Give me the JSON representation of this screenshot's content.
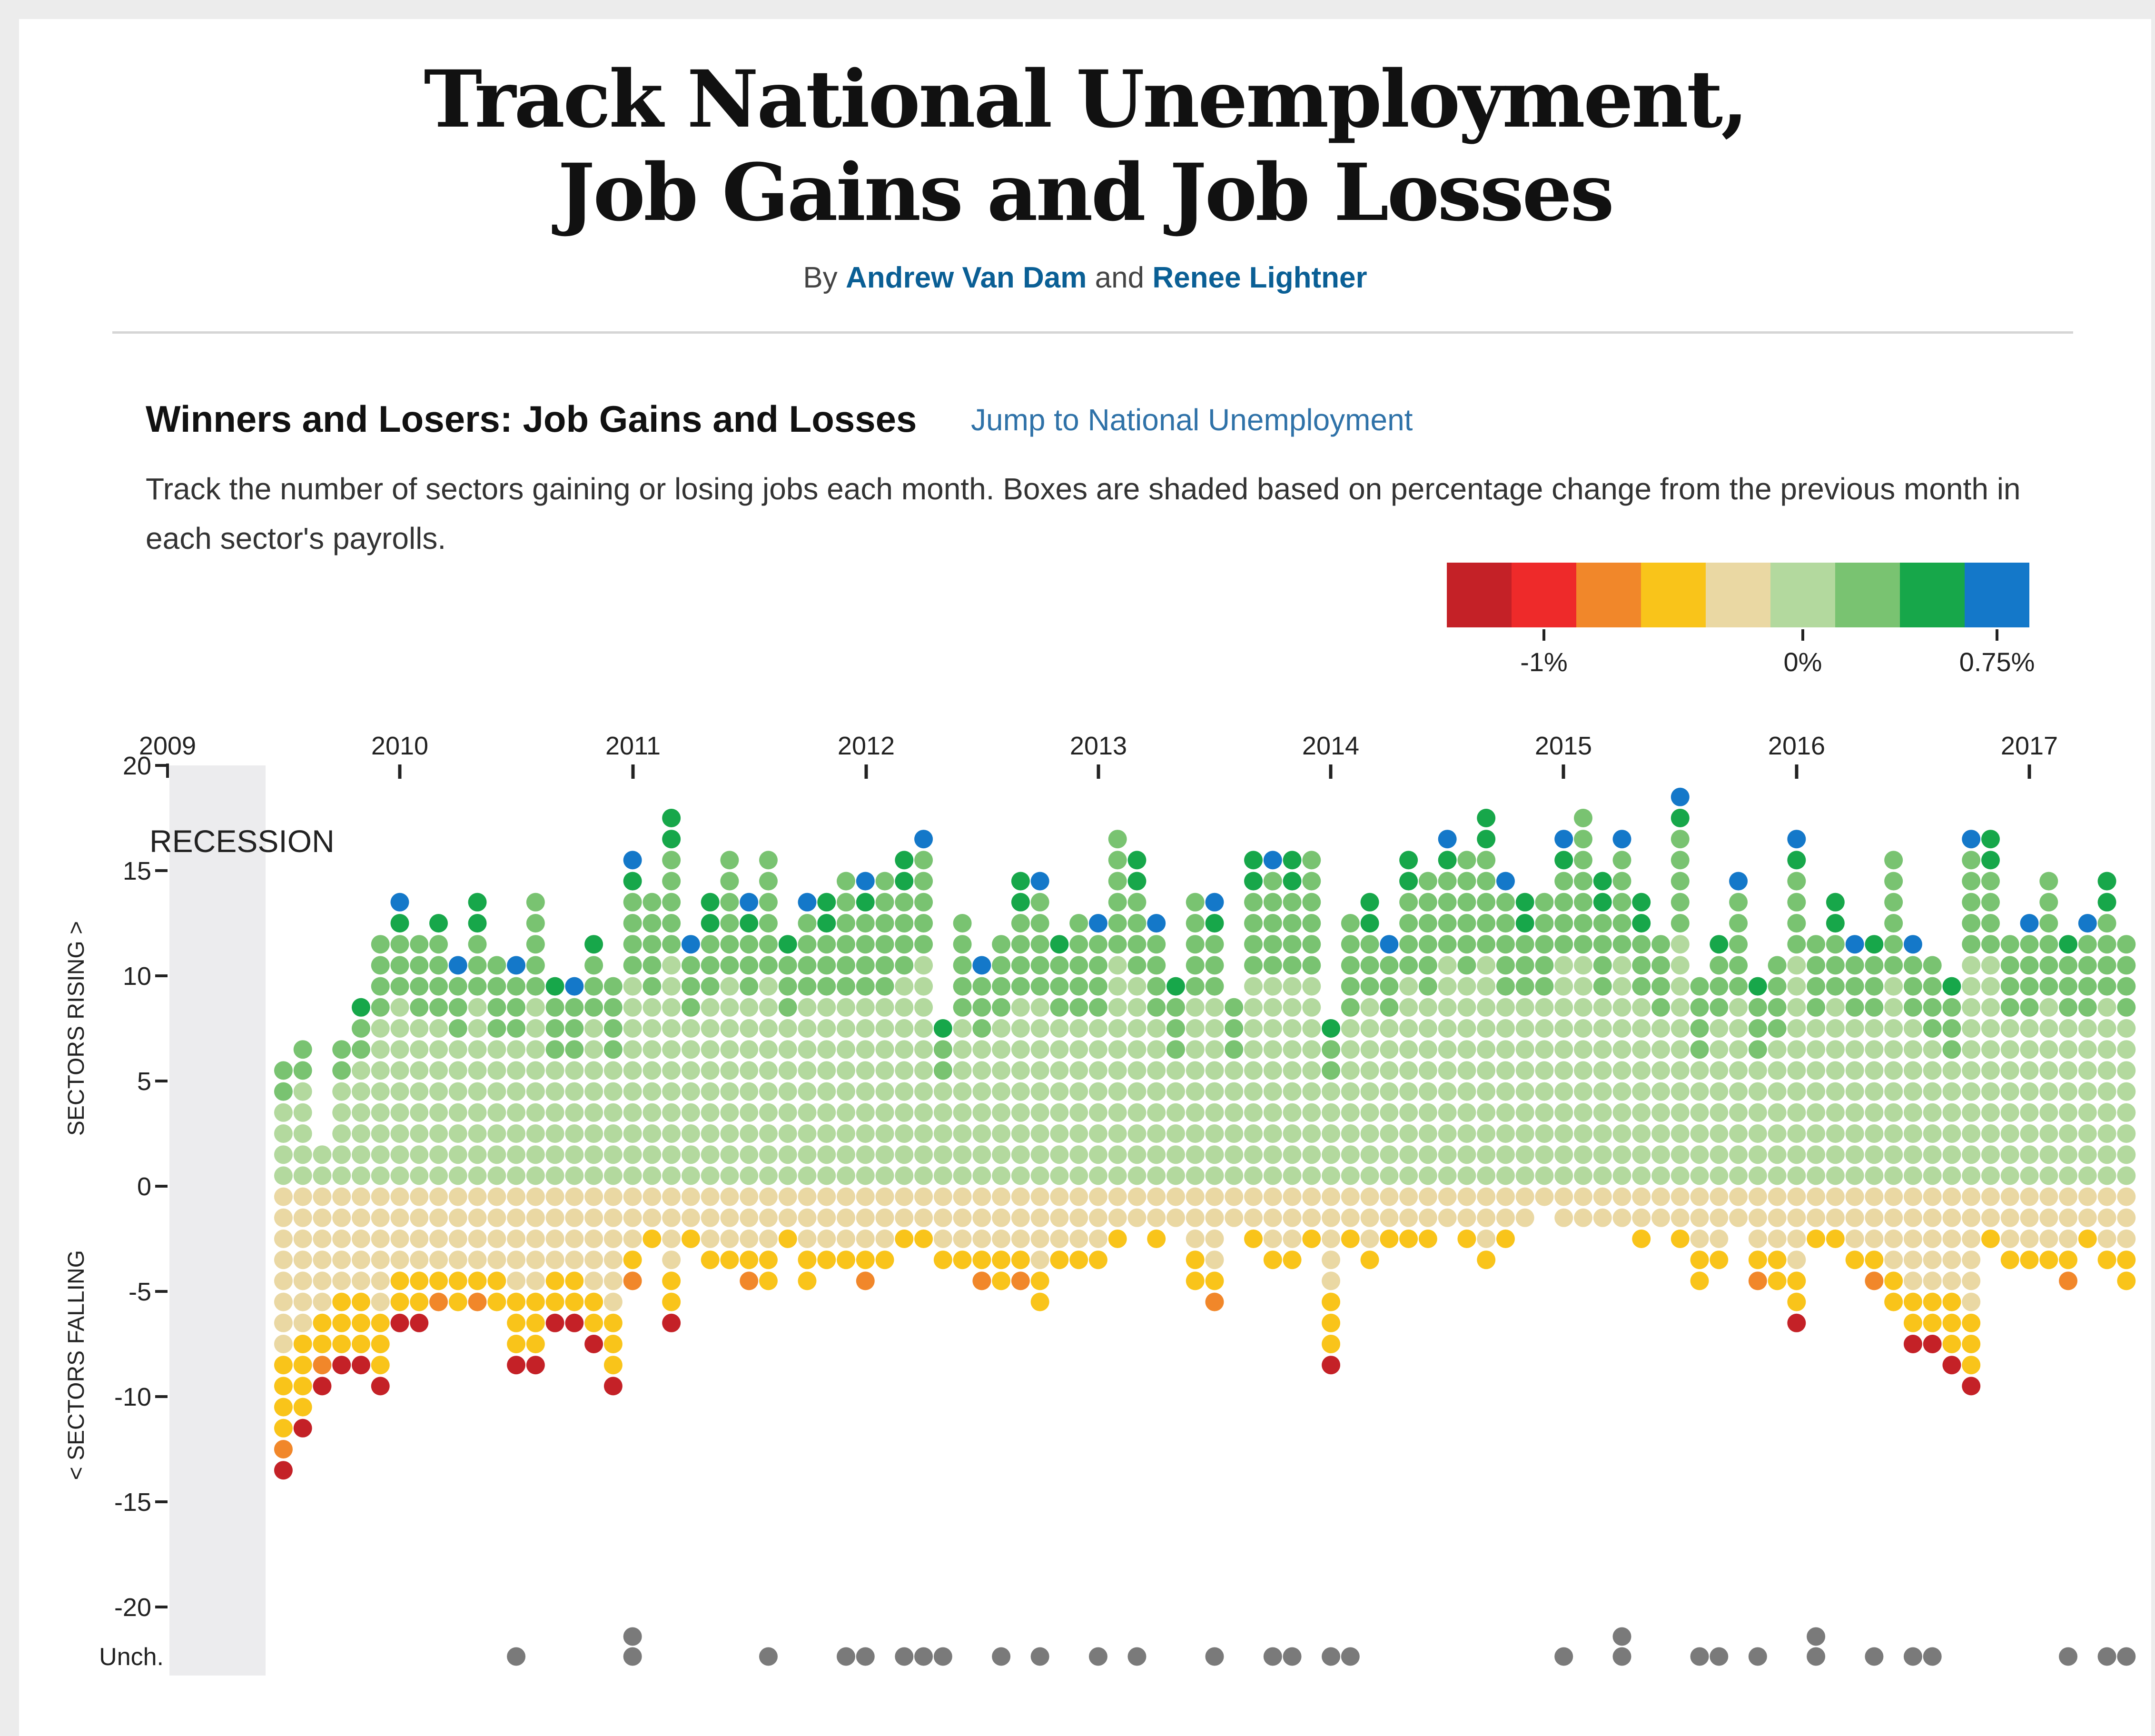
{
  "header": {
    "title_line1": "Track National Unemployment,",
    "title_line2": "Job Gains and Job Losses",
    "byline_prefix": "By",
    "author1": "Andrew Van Dam",
    "byline_joiner": "and",
    "author2": "Renee Lightner"
  },
  "section": {
    "title": "Winners and Losers: Job Gains and Losses",
    "jump_link": "Jump to National Unemployment",
    "description": "Track the number of sectors gaining or losing jobs each month. Boxes are shaded based on percentage change from the previous month in each sector's payrolls."
  },
  "colors": {
    "grey_dot": "#7a7a7a",
    "recession_band": "#ececee"
  },
  "chart_data": {
    "type": "scatter",
    "description_of_encoding": "",
    "x_start": "2009-01",
    "x_end": "2017-04",
    "x_ticks": [
      "2009",
      "2010",
      "2011",
      "2012",
      "2013",
      "2014",
      "2015",
      "2016",
      "2017"
    ],
    "y_ticks": [
      "20",
      "15",
      "10",
      "5",
      "0",
      "-5",
      "-10",
      "-15",
      "-20"
    ],
    "y_tick_values": [
      20,
      15,
      10,
      5,
      0,
      -5,
      -10,
      -15,
      -20
    ],
    "ylim": [
      -20,
      20
    ],
    "ylabel_top": "SECTORS RISING >",
    "ylabel_bottom": "< SECTORS FALLING",
    "unchanged_label": "Unch.",
    "recession_label": "RECESSION",
    "recession_range": [
      "2009-01",
      "2009-06"
    ],
    "legend": {
      "colors": [
        "#c42127",
        "#ee2a2a",
        "#f1872a",
        "#f9c41a",
        "#ead8a3",
        "#b3d99e",
        "#79c371",
        "#17a74a",
        "#1478c9"
      ],
      "labels": [
        "-1%",
        "0%",
        "0.75%"
      ],
      "label_positions": [
        1,
        5,
        8
      ]
    },
    "months": [
      "2009-07",
      "2009-08",
      "2009-09",
      "2009-10",
      "2009-11",
      "2009-12",
      "2010-01",
      "2010-02",
      "2010-03",
      "2010-04",
      "2010-05",
      "2010-06",
      "2010-07",
      "2010-08",
      "2010-09",
      "2010-10",
      "2010-11",
      "2010-12",
      "2011-01",
      "2011-02",
      "2011-03",
      "2011-04",
      "2011-05",
      "2011-06",
      "2011-07",
      "2011-08",
      "2011-09",
      "2011-10",
      "2011-11",
      "2011-12",
      "2012-01",
      "2012-02",
      "2012-03",
      "2012-04",
      "2012-05",
      "2012-06",
      "2012-07",
      "2012-08",
      "2012-09",
      "2012-10",
      "2012-11",
      "2012-12",
      "2013-01",
      "2013-02",
      "2013-03",
      "2013-04",
      "2013-05",
      "2013-06",
      "2013-07",
      "2013-08",
      "2013-09",
      "2013-10",
      "2013-11",
      "2013-12",
      "2014-01",
      "2014-02",
      "2014-03",
      "2014-04",
      "2014-05",
      "2014-06",
      "2014-07",
      "2014-08",
      "2014-09",
      "2014-10",
      "2014-11",
      "2014-12",
      "2015-01",
      "2015-02",
      "2015-03",
      "2015-04",
      "2015-05",
      "2015-06",
      "2015-07",
      "2015-08",
      "2015-09",
      "2015-10",
      "2015-11",
      "2015-12",
      "2016-01",
      "2016-02",
      "2016-03",
      "2016-04",
      "2016-05",
      "2016-06",
      "2016-07",
      "2016-08",
      "2016-09",
      "2016-10",
      "2016-11",
      "2016-12",
      "2017-01",
      "2017-02",
      "2017-03",
      "2017-04",
      "2017-05",
      "2017-06"
    ],
    "sectors_rising": [
      6,
      7,
      2,
      7,
      9,
      12,
      14,
      12,
      13,
      11,
      14,
      11,
      11,
      14,
      10,
      10,
      12,
      10,
      16,
      14,
      18,
      12,
      14,
      16,
      14,
      16,
      12,
      14,
      14,
      15,
      15,
      15,
      16,
      17,
      8,
      13,
      11,
      12,
      15,
      15,
      12,
      13,
      13,
      17,
      16,
      13,
      10,
      14,
      14,
      9,
      16,
      16,
      16,
      16,
      8,
      13,
      14,
      12,
      16,
      15,
      17,
      16,
      18,
      15,
      14,
      14,
      17,
      18,
      15,
      17,
      14,
      12,
      19,
      10,
      12,
      15,
      10,
      11,
      17,
      12,
      14,
      12,
      12,
      16,
      12,
      11,
      10,
      17,
      17,
      12,
      13,
      15,
      12,
      13,
      15,
      12
    ],
    "sectors_falling": [
      14,
      12,
      10,
      9,
      9,
      10,
      7,
      7,
      6,
      6,
      6,
      6,
      9,
      9,
      7,
      7,
      8,
      10,
      5,
      3,
      7,
      3,
      4,
      4,
      5,
      5,
      3,
      5,
      4,
      4,
      5,
      4,
      3,
      3,
      4,
      4,
      5,
      5,
      5,
      6,
      4,
      4,
      4,
      3,
      2,
      3,
      2,
      5,
      6,
      2,
      3,
      4,
      4,
      3,
      9,
      3,
      4,
      3,
      3,
      3,
      2,
      3,
      4,
      3,
      2,
      1,
      2,
      2,
      2,
      2,
      3,
      2,
      3,
      5,
      4,
      2,
      5,
      5,
      7,
      3,
      3,
      4,
      5,
      6,
      8,
      8,
      9,
      10,
      3,
      4,
      4,
      4,
      5,
      3,
      4,
      5
    ],
    "unchanged": [
      0,
      0,
      0,
      0,
      0,
      0,
      0,
      0,
      0,
      0,
      0,
      0,
      1,
      0,
      0,
      0,
      0,
      0,
      2,
      0,
      0,
      0,
      0,
      0,
      0,
      1,
      0,
      0,
      0,
      1,
      1,
      0,
      1,
      1,
      1,
      0,
      0,
      1,
      0,
      1,
      0,
      0,
      1,
      0,
      1,
      0,
      0,
      0,
      1,
      0,
      0,
      1,
      1,
      0,
      1,
      1,
      0,
      0,
      0,
      0,
      0,
      0,
      0,
      0,
      0,
      0,
      1,
      0,
      0,
      2,
      0,
      0,
      0,
      1,
      1,
      0,
      1,
      0,
      0,
      2,
      0,
      0,
      1,
      0,
      1,
      1,
      0,
      0,
      0,
      0,
      0,
      0,
      1,
      0,
      1,
      1
    ]
  }
}
